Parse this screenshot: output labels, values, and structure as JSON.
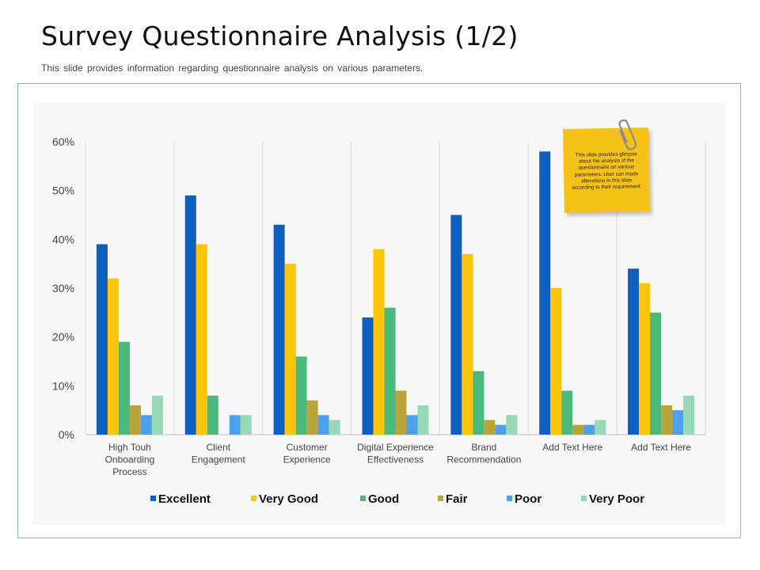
{
  "slide": {
    "title": "Survey Questionnaire Analysis (1/2)",
    "subtitle": "This slide provides  information  regarding  questionnaire  analysis on various  parameters."
  },
  "note": {
    "text": "This slide provides glimpse about the analysis of the questionnaire on various parameters. User can made alterations in this slide according to their requirement."
  },
  "chart_data": {
    "type": "bar",
    "title": "",
    "xlabel": "",
    "ylabel": "",
    "ylim": [
      0,
      60
    ],
    "yticks": [
      "0%",
      "10%",
      "20%",
      "30%",
      "40%",
      "50%",
      "60%"
    ],
    "grid": "vertical separators",
    "legend_position": "bottom",
    "categories": [
      [
        "High Touh",
        "Onboarding",
        "Process"
      ],
      [
        "Client",
        "Engagement"
      ],
      [
        "Customer",
        "Experience"
      ],
      [
        "Digital Experience",
        "Effectiveness"
      ],
      [
        "Brand",
        "Recommendation"
      ],
      [
        "Add Text Here"
      ],
      [
        "Add Text Here"
      ]
    ],
    "series": [
      {
        "name": "Excellent",
        "color": "#0f5fbf",
        "values": [
          39,
          49,
          43,
          24,
          45,
          58,
          34
        ]
      },
      {
        "name": "Very Good",
        "color": "#fcc40d",
        "values": [
          32,
          39,
          35,
          38,
          37,
          30,
          31
        ]
      },
      {
        "name": "Good",
        "color": "#4cb87c",
        "values": [
          19,
          8,
          16,
          26,
          13,
          9,
          25
        ]
      },
      {
        "name": "Fair",
        "color": "#b7a53a",
        "values": [
          6,
          0,
          7,
          9,
          3,
          2,
          6
        ]
      },
      {
        "name": "Poor",
        "color": "#4ea0ea",
        "values": [
          4,
          4,
          4,
          4,
          2,
          2,
          5
        ]
      },
      {
        "name": "Very Poor",
        "color": "#98d8b6",
        "values": [
          8,
          4,
          3,
          6,
          4,
          3,
          8
        ]
      }
    ]
  }
}
